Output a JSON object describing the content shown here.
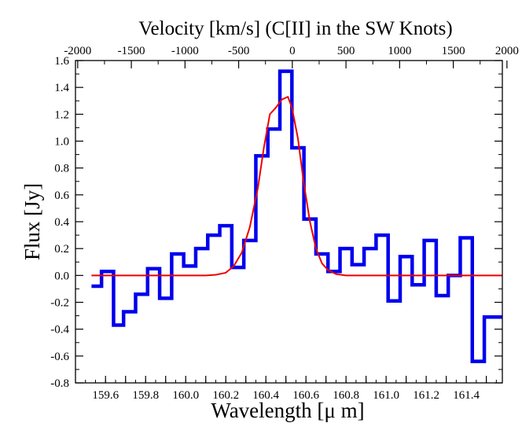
{
  "chart_data": {
    "type": "line",
    "title": "Velocity [km/s] (C[II] in the SW Knots)",
    "xlabel": "Wavelength [μ m]",
    "ylabel": "Flux [Jy]",
    "xlim": [
      159.45,
      161.58
    ],
    "ylim": [
      -0.8,
      1.6
    ],
    "grid": false,
    "legend": "none",
    "x_ticks": [
      159.6,
      159.7,
      159.8,
      159.9,
      160.0,
      160.1,
      160.2,
      160.3,
      160.4,
      160.5,
      160.6,
      160.7,
      160.8,
      160.9,
      161.0,
      161.1,
      161.2,
      161.3,
      161.4,
      161.5
    ],
    "x_tick_labels": [
      "159.6",
      "159.8",
      "160.0",
      "160.2",
      "160.4",
      "160.6",
      "160.8",
      "161.0",
      "161.2",
      "161.4"
    ],
    "x_tick_label_values": [
      159.6,
      159.8,
      160.0,
      160.2,
      160.4,
      160.6,
      160.8,
      161.0,
      161.2,
      161.4
    ],
    "y_tick_labels": [
      "1.6",
      "1.4",
      "1.2",
      "1.0",
      "0.8",
      "0.6",
      "0.4",
      "0.2",
      "0.0",
      "-0.2",
      "-0.4",
      "-0.6",
      "-0.8"
    ],
    "y_tick_values": [
      1.6,
      1.4,
      1.2,
      1.0,
      0.8,
      0.6,
      0.4,
      0.2,
      0.0,
      -0.2,
      -0.4,
      -0.6,
      -0.8
    ],
    "top_axis": {
      "label": "Velocity [km/s] (C[II] in the SW Knots)",
      "reference_wavelength": 160.532,
      "tick_values": [
        -2000,
        -1500,
        -1000,
        -500,
        0,
        500,
        1000,
        1500,
        2000
      ],
      "tick_labels": [
        "-2000",
        "-1500",
        "-1000",
        "-500",
        "0",
        "500",
        "1000",
        "1500",
        "2000"
      ]
    },
    "series": [
      {
        "style": "step",
        "color": "#0000ee",
        "x": [
          159.53,
          159.58,
          159.64,
          159.69,
          159.75,
          159.81,
          159.87,
          159.93,
          159.99,
          160.05,
          160.11,
          160.17,
          160.23,
          160.29,
          160.35,
          160.41,
          160.47,
          160.53,
          160.59,
          160.65,
          160.71,
          160.77,
          160.83,
          160.89,
          160.95,
          161.01,
          161.07,
          161.13,
          161.19,
          161.25,
          161.31,
          161.37,
          161.43,
          161.49,
          161.55,
          161.58
        ],
        "values": [
          -0.08,
          0.03,
          -0.37,
          -0.27,
          -0.14,
          0.05,
          -0.17,
          0.16,
          0.07,
          0.2,
          0.3,
          0.37,
          0.06,
          0.26,
          0.89,
          1.09,
          1.52,
          0.95,
          0.42,
          0.16,
          0.03,
          0.2,
          0.08,
          0.2,
          0.3,
          -0.19,
          0.14,
          -0.07,
          0.26,
          -0.15,
          0.0,
          0.28,
          -0.64,
          -0.31,
          -0.31,
          -0.31
        ]
      },
      {
        "style": "line",
        "color": "#ee0000",
        "x": [
          159.53,
          159.8,
          160.0,
          160.1,
          160.15,
          160.2,
          160.24,
          160.28,
          160.32,
          160.36,
          160.39,
          160.42,
          160.45,
          160.48,
          160.51,
          160.53,
          160.56,
          160.59,
          160.62,
          160.65,
          160.68,
          160.71,
          160.75,
          160.8,
          160.9,
          161.1,
          161.3,
          161.58
        ],
        "values": [
          0.0,
          0.0,
          0.0,
          0.0,
          0.005,
          0.02,
          0.07,
          0.17,
          0.36,
          0.65,
          0.95,
          1.2,
          1.25,
          1.31,
          1.33,
          1.25,
          1.02,
          0.68,
          0.4,
          0.2,
          0.09,
          0.04,
          0.01,
          0.0,
          0.0,
          0.0,
          0.0,
          0.0
        ]
      }
    ]
  }
}
